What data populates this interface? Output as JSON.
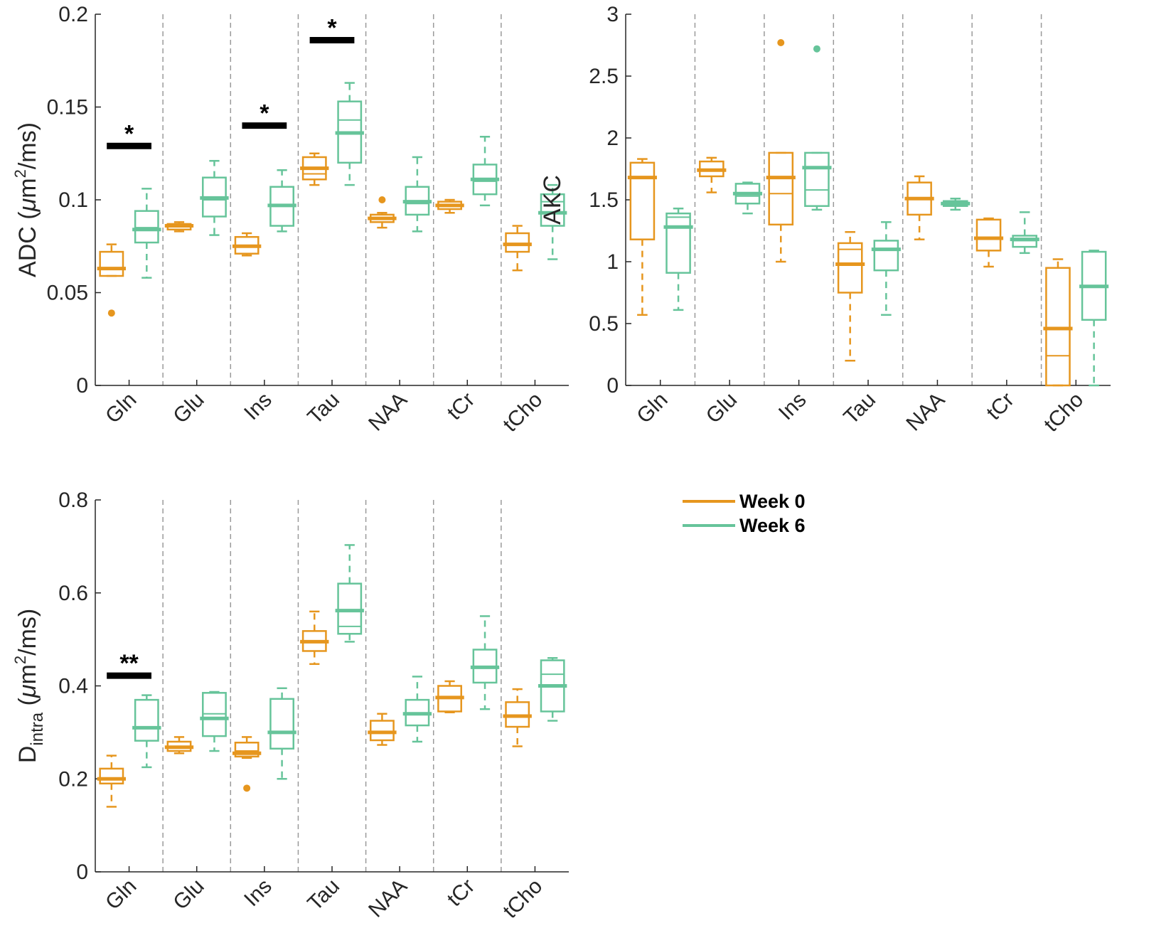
{
  "chart_data": [
    {
      "type": "box",
      "panel": "top-left",
      "ylabel": "ADC (μm²/ms)",
      "ylabel_parts": {
        "main": "ADC (",
        "greek": "μ",
        "unit": "m",
        "sup": "2",
        "rest": "/ms)"
      },
      "ylim": [
        0,
        0.2
      ],
      "yticks": [
        0,
        0.05,
        0.1,
        0.15,
        0.2
      ],
      "ytick_labels": [
        "0",
        "0.05",
        "0.1",
        "0.15",
        "0.2"
      ],
      "categories": [
        "Gln",
        "Glu",
        "Ins",
        "Tau",
        "NAA",
        "tCr",
        "tCho"
      ],
      "series": [
        {
          "name": "Week 0",
          "boxes": [
            {
              "wlo": 0.059,
              "q1": 0.059,
              "med": 0.063,
              "mean": 0.063,
              "q3": 0.072,
              "whi": 0.076,
              "outliers": [
                0.039
              ]
            },
            {
              "wlo": 0.083,
              "q1": 0.084,
              "med": 0.086,
              "mean": 0.086,
              "q3": 0.087,
              "whi": 0.088,
              "outliers": []
            },
            {
              "wlo": 0.07,
              "q1": 0.071,
              "med": 0.075,
              "mean": 0.075,
              "q3": 0.08,
              "whi": 0.082,
              "outliers": []
            },
            {
              "wlo": 0.108,
              "q1": 0.111,
              "med": 0.114,
              "mean": 0.117,
              "q3": 0.123,
              "whi": 0.125,
              "outliers": []
            },
            {
              "wlo": 0.085,
              "q1": 0.088,
              "med": 0.09,
              "mean": 0.09,
              "q3": 0.092,
              "whi": 0.093,
              "outliers": [
                0.1
              ]
            },
            {
              "wlo": 0.093,
              "q1": 0.095,
              "med": 0.097,
              "mean": 0.097,
              "q3": 0.099,
              "whi": 0.1,
              "outliers": []
            },
            {
              "wlo": 0.062,
              "q1": 0.072,
              "med": 0.076,
              "mean": 0.076,
              "q3": 0.082,
              "whi": 0.086,
              "outliers": []
            }
          ]
        },
        {
          "name": "Week 6",
          "boxes": [
            {
              "wlo": 0.058,
              "q1": 0.077,
              "med": 0.085,
              "mean": 0.084,
              "q3": 0.094,
              "whi": 0.106,
              "outliers": []
            },
            {
              "wlo": 0.081,
              "q1": 0.091,
              "med": 0.1,
              "mean": 0.101,
              "q3": 0.112,
              "whi": 0.121,
              "outliers": []
            },
            {
              "wlo": 0.083,
              "q1": 0.086,
              "med": 0.097,
              "mean": 0.097,
              "q3": 0.107,
              "whi": 0.116,
              "outliers": []
            },
            {
              "wlo": 0.108,
              "q1": 0.12,
              "med": 0.143,
              "mean": 0.136,
              "q3": 0.153,
              "whi": 0.163,
              "outliers": []
            },
            {
              "wlo": 0.083,
              "q1": 0.092,
              "med": 0.098,
              "mean": 0.099,
              "q3": 0.107,
              "whi": 0.123,
              "outliers": []
            },
            {
              "wlo": 0.097,
              "q1": 0.103,
              "med": 0.11,
              "mean": 0.111,
              "q3": 0.119,
              "whi": 0.134,
              "outliers": []
            },
            {
              "wlo": 0.068,
              "q1": 0.086,
              "med": 0.099,
              "mean": 0.093,
              "q3": 0.103,
              "whi": 0.108,
              "outliers": []
            }
          ]
        }
      ],
      "significance": [
        {
          "category": "Gln",
          "y": 0.129,
          "label": "*"
        },
        {
          "category": "Ins",
          "y": 0.14,
          "label": "*"
        },
        {
          "category": "Tau",
          "y": 0.186,
          "label": "*"
        }
      ]
    },
    {
      "type": "box",
      "panel": "top-right",
      "ylabel": "AKC",
      "ylim": [
        0,
        3
      ],
      "yticks": [
        0,
        0.5,
        1,
        1.5,
        2,
        2.5,
        3
      ],
      "ytick_labels": [
        "0",
        "0.5",
        "1",
        "1.5",
        "2",
        "2.5",
        "3"
      ],
      "categories": [
        "Gln",
        "Glu",
        "Ins",
        "Tau",
        "NAA",
        "tCr",
        "tCho"
      ],
      "series": [
        {
          "name": "Week 0",
          "boxes": [
            {
              "wlo": 0.57,
              "q1": 1.18,
              "med": 1.68,
              "mean": 1.68,
              "q3": 1.8,
              "whi": 1.83,
              "outliers": []
            },
            {
              "wlo": 1.56,
              "q1": 1.69,
              "med": 1.74,
              "mean": 1.74,
              "q3": 1.81,
              "whi": 1.84,
              "outliers": []
            },
            {
              "wlo": 1.0,
              "q1": 1.3,
              "med": 1.55,
              "mean": 1.68,
              "q3": 1.88,
              "whi": 1.88,
              "outliers": [
                2.77
              ]
            },
            {
              "wlo": 0.2,
              "q1": 0.75,
              "med": 1.1,
              "mean": 0.98,
              "q3": 1.15,
              "whi": 1.24,
              "outliers": []
            },
            {
              "wlo": 1.18,
              "q1": 1.38,
              "med": 1.51,
              "mean": 1.51,
              "q3": 1.64,
              "whi": 1.69,
              "outliers": []
            },
            {
              "wlo": 0.96,
              "q1": 1.09,
              "med": 1.19,
              "mean": 1.19,
              "q3": 1.34,
              "whi": 1.35,
              "outliers": []
            },
            {
              "wlo": 0.0,
              "q1": 0.0,
              "med": 0.24,
              "mean": 0.46,
              "q3": 0.95,
              "whi": 1.02,
              "outliers": []
            }
          ]
        },
        {
          "name": "Week 6",
          "boxes": [
            {
              "wlo": 0.61,
              "q1": 0.91,
              "med": 1.36,
              "mean": 1.28,
              "q3": 1.39,
              "whi": 1.43,
              "outliers": []
            },
            {
              "wlo": 1.39,
              "q1": 1.47,
              "med": 1.53,
              "mean": 1.55,
              "q3": 1.63,
              "whi": 1.64,
              "outliers": []
            },
            {
              "wlo": 1.42,
              "q1": 1.45,
              "med": 1.58,
              "mean": 1.76,
              "q3": 1.88,
              "whi": 1.88,
              "outliers": [
                2.72
              ]
            },
            {
              "wlo": 0.57,
              "q1": 0.93,
              "med": 1.1,
              "mean": 1.1,
              "q3": 1.17,
              "whi": 1.32,
              "outliers": []
            },
            {
              "wlo": 1.42,
              "q1": 1.45,
              "med": 1.47,
              "mean": 1.47,
              "q3": 1.49,
              "whi": 1.51,
              "outliers": []
            },
            {
              "wlo": 1.07,
              "q1": 1.12,
              "med": 1.17,
              "mean": 1.18,
              "q3": 1.21,
              "whi": 1.4,
              "outliers": []
            },
            {
              "wlo": 0.0,
              "q1": 0.53,
              "med": 0.8,
              "mean": 0.8,
              "q3": 1.08,
              "whi": 1.09,
              "outliers": []
            }
          ]
        }
      ],
      "significance": []
    },
    {
      "type": "box",
      "panel": "bottom-left",
      "ylabel": "Dintra (μm²/ms)",
      "ylabel_parts": {
        "main": "D",
        "sub": "intra",
        "paren": " (",
        "greek": "μ",
        "unit": "m",
        "sup": "2",
        "rest": "/ms)"
      },
      "ylim": [
        0,
        0.8
      ],
      "yticks": [
        0,
        0.2,
        0.4,
        0.6,
        0.8
      ],
      "ytick_labels": [
        "0",
        "0.2",
        "0.4",
        "0.6",
        "0.8"
      ],
      "categories": [
        "Gln",
        "Glu",
        "Ins",
        "Tau",
        "NAA",
        "tCr",
        "tCho"
      ],
      "series": [
        {
          "name": "Week 0",
          "boxes": [
            {
              "wlo": 0.14,
              "q1": 0.19,
              "med": 0.2,
              "mean": 0.2,
              "q3": 0.222,
              "whi": 0.25,
              "outliers": []
            },
            {
              "wlo": 0.255,
              "q1": 0.26,
              "med": 0.268,
              "mean": 0.268,
              "q3": 0.28,
              "whi": 0.29,
              "outliers": []
            },
            {
              "wlo": 0.245,
              "q1": 0.248,
              "med": 0.26,
              "mean": 0.255,
              "q3": 0.278,
              "whi": 0.29,
              "outliers": [
                0.18
              ]
            },
            {
              "wlo": 0.447,
              "q1": 0.475,
              "med": 0.495,
              "mean": 0.495,
              "q3": 0.518,
              "whi": 0.56,
              "outliers": []
            },
            {
              "wlo": 0.273,
              "q1": 0.283,
              "med": 0.3,
              "mean": 0.3,
              "q3": 0.325,
              "whi": 0.34,
              "outliers": []
            },
            {
              "wlo": 0.343,
              "q1": 0.345,
              "med": 0.375,
              "mean": 0.375,
              "q3": 0.4,
              "whi": 0.41,
              "outliers": []
            },
            {
              "wlo": 0.27,
              "q1": 0.312,
              "med": 0.335,
              "mean": 0.335,
              "q3": 0.365,
              "whi": 0.393,
              "outliers": []
            }
          ]
        },
        {
          "name": "Week 6",
          "boxes": [
            {
              "wlo": 0.225,
              "q1": 0.282,
              "med": 0.31,
              "mean": 0.31,
              "q3": 0.37,
              "whi": 0.38,
              "outliers": []
            },
            {
              "wlo": 0.26,
              "q1": 0.292,
              "med": 0.34,
              "mean": 0.33,
              "q3": 0.385,
              "whi": 0.387,
              "outliers": []
            },
            {
              "wlo": 0.2,
              "q1": 0.265,
              "med": 0.3,
              "mean": 0.3,
              "q3": 0.372,
              "whi": 0.395,
              "outliers": []
            },
            {
              "wlo": 0.495,
              "q1": 0.512,
              "med": 0.528,
              "mean": 0.562,
              "q3": 0.62,
              "whi": 0.703,
              "outliers": []
            },
            {
              "wlo": 0.28,
              "q1": 0.315,
              "med": 0.34,
              "mean": 0.34,
              "q3": 0.37,
              "whi": 0.42,
              "outliers": []
            },
            {
              "wlo": 0.35,
              "q1": 0.407,
              "med": 0.44,
              "mean": 0.44,
              "q3": 0.478,
              "whi": 0.55,
              "outliers": []
            },
            {
              "wlo": 0.325,
              "q1": 0.345,
              "med": 0.425,
              "mean": 0.4,
              "q3": 0.455,
              "whi": 0.46,
              "outliers": []
            }
          ]
        }
      ],
      "significance": [
        {
          "category": "Gln",
          "y": 0.422,
          "label": "**"
        }
      ]
    }
  ],
  "legend": {
    "entries": [
      {
        "label": "Week 0",
        "color": "#e6961e"
      },
      {
        "label": "Week 6",
        "color": "#66c49a"
      }
    ]
  },
  "colors": {
    "week0": "#e6961e",
    "week6": "#66c49a",
    "axis": "#262626",
    "separator": "#9a9a9a",
    "significance": "#000000"
  }
}
